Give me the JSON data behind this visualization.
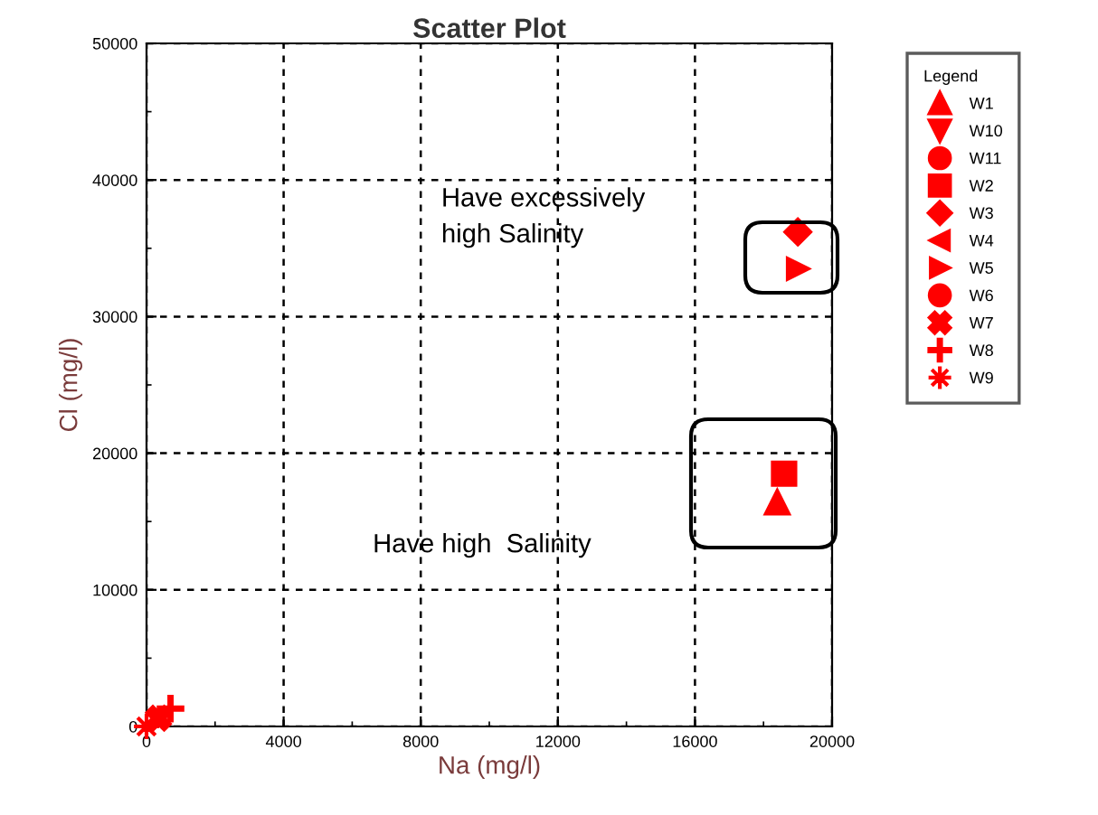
{
  "chart_data": {
    "type": "scatter",
    "title": "Scatter Plot",
    "xlabel": "Na (mg/l)",
    "ylabel": "Cl (mg/l)",
    "legend_title": "Legend",
    "xlim": [
      0,
      20000
    ],
    "xticks": [
      0,
      4000,
      8000,
      12000,
      16000,
      20000
    ],
    "ylim": [
      0,
      50000
    ],
    "yticks": [
      0,
      10000,
      20000,
      30000,
      40000,
      50000
    ],
    "grid": true,
    "legend": "right",
    "annotations": [
      "Have excessively\nhigh Salinity",
      "Have high  Salinity"
    ],
    "series": [
      {
        "name": "W1",
        "color": "#ff0000",
        "marker": "triangle",
        "x": [
          18400
        ],
        "values": [
          16400
        ]
      },
      {
        "name": "W10",
        "color": "#ff0000",
        "marker": "triangle_down",
        "x": [
          null
        ],
        "values": [
          null
        ]
      },
      {
        "name": "W11",
        "color": "#ff0000",
        "marker": "circle",
        "x": [
          null
        ],
        "values": [
          null
        ]
      },
      {
        "name": "W2",
        "color": "#ff0000",
        "marker": "square",
        "x": [
          18600
        ],
        "values": [
          18500
        ]
      },
      {
        "name": "W3",
        "color": "#ff0000",
        "marker": "diamond",
        "x": [
          19000
        ],
        "values": [
          36200
        ]
      },
      {
        "name": "W4",
        "color": "#ff0000",
        "marker": "triangle_left",
        "x": [
          null
        ],
        "values": [
          null
        ]
      },
      {
        "name": "W5",
        "color": "#ff0000",
        "marker": "triangle_right",
        "x": [
          19000
        ],
        "values": [
          33500
        ]
      },
      {
        "name": "W6",
        "color": "#ff0000",
        "marker": "circle",
        "x": [
          null
        ],
        "values": [
          null
        ]
      },
      {
        "name": "W7",
        "color": "#ff0000",
        "marker": "cross",
        "x": [
          350
        ],
        "values": [
          600
        ]
      },
      {
        "name": "W8",
        "color": "#ff0000",
        "marker": "plus",
        "x": [
          700
        ],
        "values": [
          1300
        ]
      },
      {
        "name": "W9",
        "color": "#ff0000",
        "marker": "asterisk",
        "x": [
          0
        ],
        "values": [
          0
        ]
      }
    ]
  }
}
